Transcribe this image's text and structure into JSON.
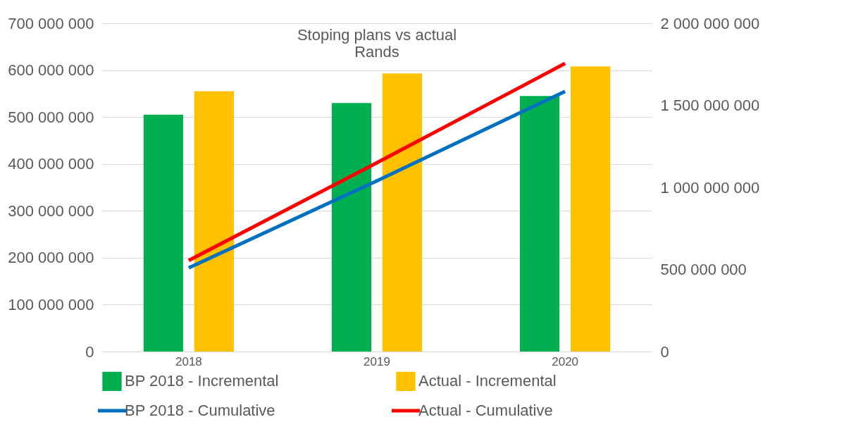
{
  "chart_data": {
    "type": "bar",
    "title": "Stoping plans vs actual",
    "subtitle": "Rands",
    "categories": [
      "2018",
      "2019",
      "2020"
    ],
    "series": [
      {
        "name": "BP 2018 - Incremental",
        "color": "#00b050",
        "values": [
          505000000,
          530000000,
          545000000
        ]
      },
      {
        "name": "Actual - Incremental",
        "color": "#ffc000",
        "values": [
          555000000,
          593000000,
          608000000
        ]
      },
      {
        "name": "BP 2018 - Cumulative",
        "type": "line",
        "axis": "y2",
        "color": "#0070c0",
        "values": [
          510000000,
          1040000000,
          1585000000
        ]
      },
      {
        "name": "Actual - Cumulative",
        "type": "line",
        "axis": "y2",
        "color": "#ff0000",
        "values": [
          555000000,
          1150000000,
          1755000000
        ]
      }
    ],
    "ylim": [
      0,
      700000000
    ],
    "yticks": [
      0,
      100000000,
      200000000,
      300000000,
      400000000,
      500000000,
      600000000,
      700000000
    ],
    "y2lim": [
      0,
      2000000000
    ],
    "y2ticks": [
      0,
      500000000,
      1000000000,
      1500000000,
      2000000000
    ],
    "grid": "y",
    "legend": "bottom"
  }
}
